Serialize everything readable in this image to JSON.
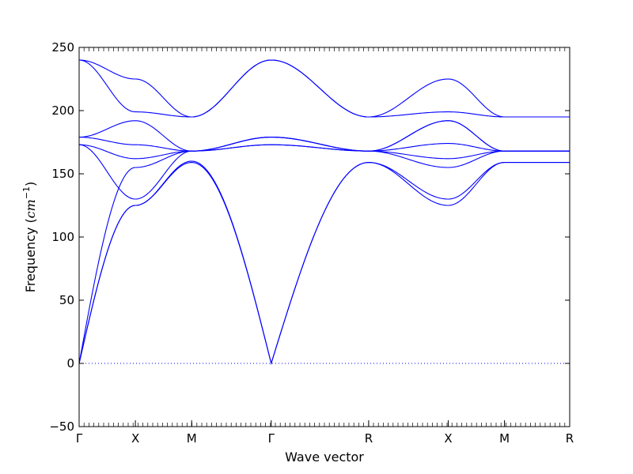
{
  "chart_data": {
    "type": "line",
    "title": "",
    "xlabel": "Wave vector",
    "ylabel_text": "Frequency (",
    "ylabel_unit": "cm",
    "ylabel_exp": "−1",
    "ylabel_close": ")",
    "ylim": [
      -50,
      250
    ],
    "yticks": [
      -50,
      0,
      50,
      100,
      150,
      200,
      250
    ],
    "xlim": [
      0,
      2.18
    ],
    "high_symmetry_points": [
      {
        "label": "Γ",
        "x": 0.0
      },
      {
        "label": "X",
        "x": 0.25
      },
      {
        "label": "M",
        "x": 0.5
      },
      {
        "label": "Γ",
        "x": 0.8536
      },
      {
        "label": "R",
        "x": 1.2866
      },
      {
        "label": "X",
        "x": 1.6402
      },
      {
        "label": "M",
        "x": 1.8902
      },
      {
        "label": "R",
        "x": 2.18
      }
    ],
    "zero_line": {
      "y": 0,
      "style": "dotted"
    },
    "series_color": "#0000ff",
    "bands": [
      {
        "name": "",
        "values": [
          0,
          125,
          160,
          0,
          159,
          125,
          159,
          159
        ]
      },
      {
        "name": "",
        "values": [
          0,
          125,
          159,
          0,
          159,
          130,
          159,
          159
        ]
      },
      {
        "name": "",
        "values": [
          0,
          155,
          168,
          173,
          168,
          155,
          168,
          168
        ]
      },
      {
        "name": "",
        "values": [
          173,
          162,
          168,
          173,
          168,
          162,
          168,
          168
        ]
      },
      {
        "name": "",
        "values": [
          173,
          130,
          168,
          179,
          168,
          174,
          168,
          168
        ]
      },
      {
        "name": "",
        "values": [
          179,
          173,
          168,
          179,
          168,
          192,
          168,
          168
        ]
      },
      {
        "name": "",
        "values": [
          179,
          192,
          168,
          179,
          168,
          192,
          168,
          168
        ]
      },
      {
        "name": "",
        "values": [
          240,
          199,
          195,
          240,
          195,
          199,
          195,
          195
        ]
      },
      {
        "name": "",
        "values": [
          240,
          225,
          195,
          240,
          195,
          225,
          195,
          195
        ]
      }
    ]
  }
}
